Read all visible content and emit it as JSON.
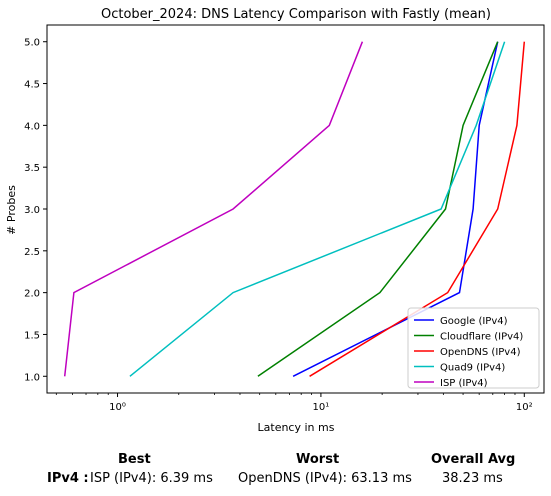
{
  "chart_data": {
    "type": "line",
    "title": "October_2024: DNS Latency Comparison with Fastly (mean)",
    "xlabel": "Latency in ms",
    "ylabel": "# Probes",
    "xscale": "log",
    "xlim": [
      0.45,
      125
    ],
    "ylim": [
      0.8,
      5.2
    ],
    "xticks": [
      {
        "value": 1,
        "label": "10⁰"
      },
      {
        "value": 10,
        "label": "10¹"
      },
      {
        "value": 100,
        "label": "10²"
      }
    ],
    "yticks": [
      1.0,
      1.5,
      2.0,
      2.5,
      3.0,
      3.5,
      4.0,
      4.5,
      5.0
    ],
    "ytick_labels": [
      "1.0",
      "1.5",
      "2.0",
      "2.5",
      "3.0",
      "3.5",
      "4.0",
      "4.5",
      "5.0"
    ],
    "grid": false,
    "legend_position": "lower-right",
    "series": [
      {
        "name": "Google (IPv4)",
        "color": "#0000ff",
        "x": [
          7.3,
          48,
          56,
          60,
          74
        ],
        "y": [
          1,
          2,
          3,
          4,
          5
        ]
      },
      {
        "name": "Cloudflare (IPv4)",
        "color": "#008000",
        "x": [
          4.9,
          19.5,
          41,
          50,
          74
        ],
        "y": [
          1,
          2,
          3,
          4,
          5
        ]
      },
      {
        "name": "OpenDNS (IPv4)",
        "color": "#ff0000",
        "x": [
          8.8,
          42,
          74,
          92,
          100
        ],
        "y": [
          1,
          2,
          3,
          4,
          5
        ]
      },
      {
        "name": "Quad9 (IPv4)",
        "color": "#00bfbf",
        "x": [
          1.15,
          3.7,
          39,
          58,
          80
        ],
        "y": [
          1,
          2,
          3,
          4,
          5
        ]
      },
      {
        "name": "ISP (IPv4)",
        "color": "#bf00bf",
        "x": [
          0.55,
          0.61,
          3.7,
          11,
          16
        ],
        "y": [
          1,
          2,
          3,
          4,
          5
        ]
      }
    ]
  },
  "summary": {
    "headers": {
      "best": "Best",
      "worst": "Worst",
      "overall": "Overall Avg"
    },
    "row_label": "IPv4 :",
    "best_value": "ISP (IPv4): 6.39 ms",
    "worst_value": "OpenDNS (IPv4): 63.13 ms",
    "overall_value": "38.23 ms"
  }
}
